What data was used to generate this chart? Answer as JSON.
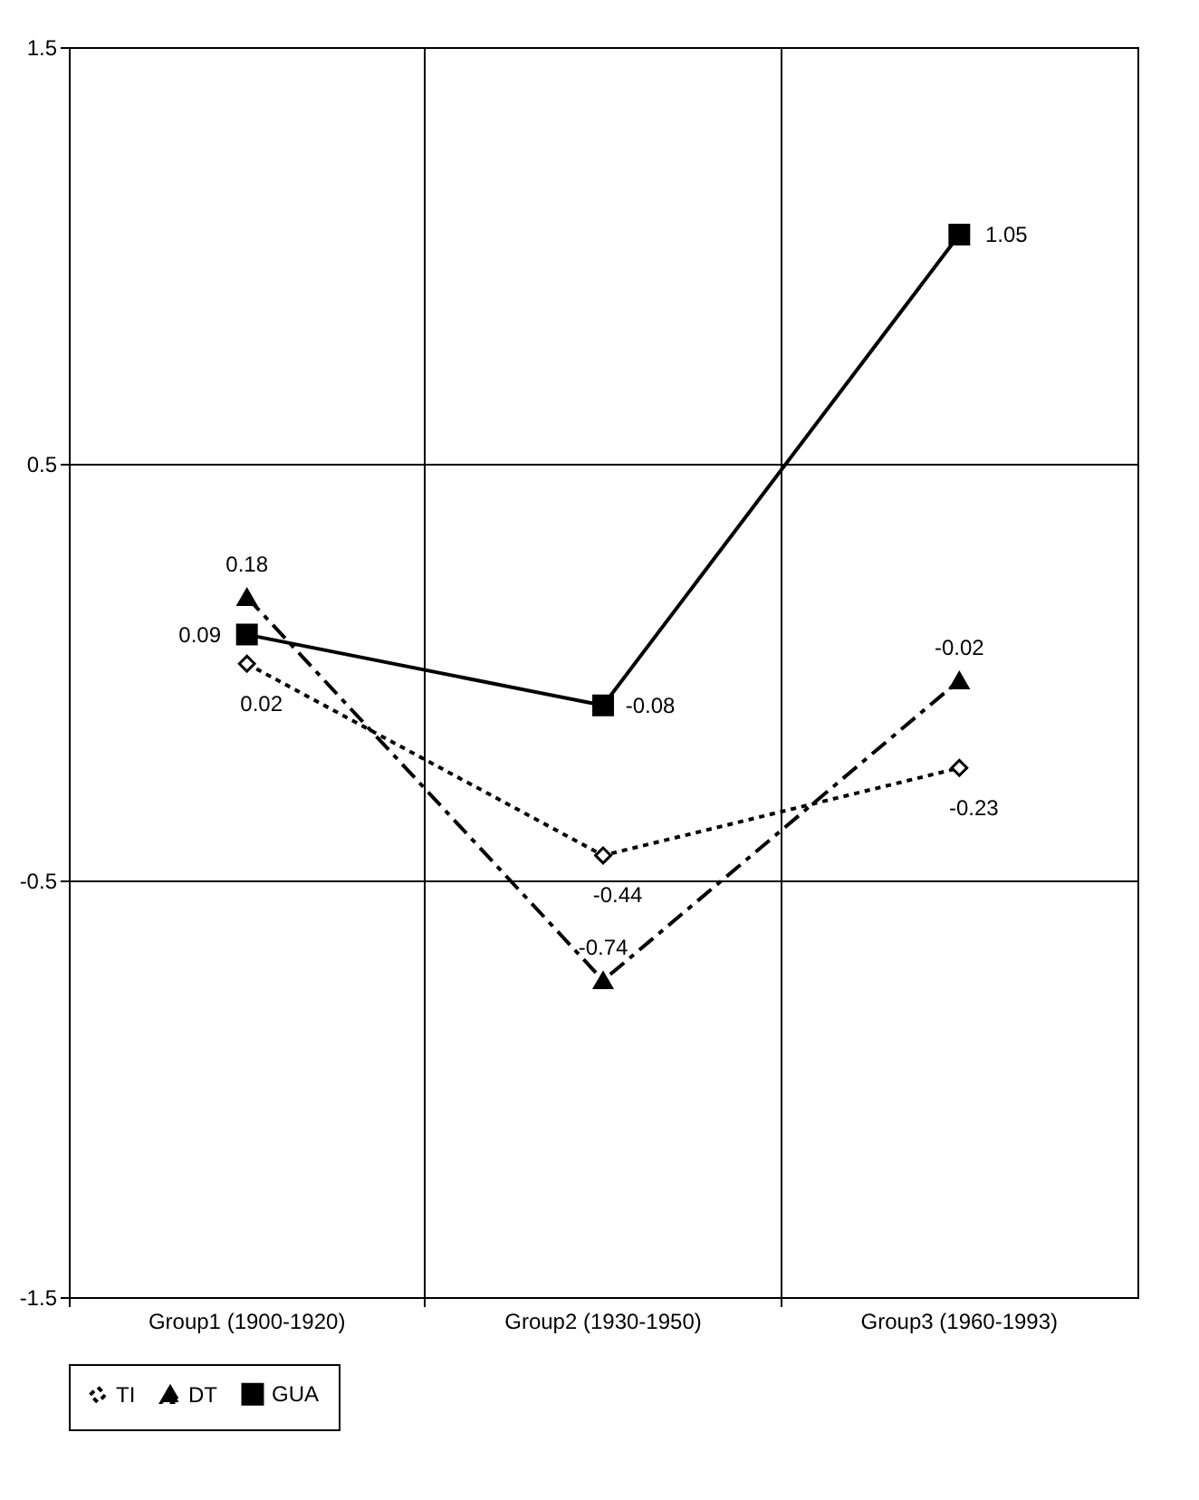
{
  "chart_data": {
    "type": "line",
    "categories": [
      "Group1 (1900-1920)",
      "Group2 (1930-1950)",
      "Group3 (1960-1993)"
    ],
    "series": [
      {
        "name": "TI",
        "color": "#000000",
        "values": [
          0.02,
          -0.44,
          -0.23
        ],
        "marker": "diamond",
        "line_style": "dotted"
      },
      {
        "name": "DT",
        "color": "#000000",
        "values": [
          0.18,
          -0.74,
          -0.02
        ],
        "marker": "triangle",
        "line_style": "dashed"
      },
      {
        "name": "GUA",
        "color": "#000000",
        "values": [
          0.09,
          -0.08,
          1.05
        ],
        "marker": "square",
        "line_style": "solid"
      }
    ],
    "ylim": [
      -1.5,
      1.5
    ],
    "yticks": [
      -1.5,
      -0.5,
      0.5,
      1.5
    ],
    "grid": true,
    "legend": "bottom",
    "data_labels": true
  }
}
